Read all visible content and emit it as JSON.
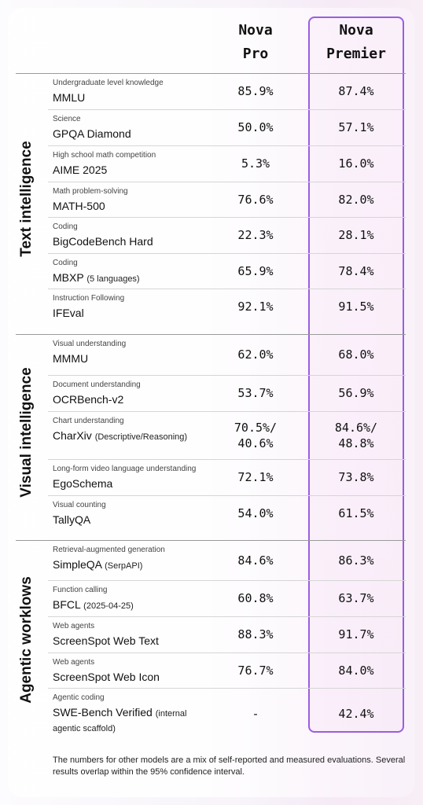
{
  "columns": {
    "pro": [
      "Nova",
      "Pro"
    ],
    "premier": [
      "Nova",
      "Premier"
    ]
  },
  "sections": [
    {
      "label": "Text intelligence",
      "rows": [
        {
          "cat": "Undergraduate level knowledge",
          "name": "MMLU",
          "sub": "",
          "pro": "85.9%",
          "prem": "87.4%"
        },
        {
          "cat": "Science",
          "name": "GPQA Diamond",
          "sub": "",
          "pro": "50.0%",
          "prem": "57.1%"
        },
        {
          "cat": "High school math competition",
          "name": "AIME 2025",
          "sub": "",
          "pro": "5.3%",
          "prem": "16.0%"
        },
        {
          "cat": "Math problem-solving",
          "name": "MATH-500",
          "sub": "",
          "pro": "76.6%",
          "prem": "82.0%"
        },
        {
          "cat": "Coding",
          "name": "BigCodeBench Hard",
          "sub": "",
          "pro": "22.3%",
          "prem": "28.1%"
        },
        {
          "cat": "Coding",
          "name": "MBXP",
          "sub": "(5 languages)",
          "pro": "65.9%",
          "prem": "78.4%"
        },
        {
          "cat": "Instruction Following",
          "name": "IFEval",
          "sub": "",
          "pro": "92.1%",
          "prem": "91.5%"
        }
      ]
    },
    {
      "label": "Visual intelligence",
      "rows": [
        {
          "cat": "Visual understanding",
          "name": "MMMU",
          "sub": "",
          "pro": "62.0%",
          "prem": "68.0%"
        },
        {
          "cat": "Document understanding",
          "name": "OCRBench-v2",
          "sub": "",
          "pro": "53.7%",
          "prem": "56.9%"
        },
        {
          "cat": "Chart understanding",
          "name": "CharXiv",
          "sub": "(Descriptive/Reasoning)",
          "pro": "70.5%/",
          "pro2": "40.6%",
          "prem": "84.6%/",
          "prem2": "48.8%"
        },
        {
          "cat": "Long-form video language understanding",
          "name": "EgoSchema",
          "sub": "",
          "pro": "72.1%",
          "prem": "73.8%"
        },
        {
          "cat": "Visual counting",
          "name": "TallyQA",
          "sub": "",
          "pro": "54.0%",
          "prem": "61.5%"
        }
      ]
    },
    {
      "label": "Agentic worklows",
      "rows": [
        {
          "cat": "Retrieval-augmented generation",
          "name": "SimpleQA",
          "sub": "(SerpAPI)",
          "pro": "84.6%",
          "prem": "86.3%"
        },
        {
          "cat": "Function calling",
          "name": "BFCL",
          "sub": "(2025-04-25)",
          "pro": "60.8%",
          "prem": "63.7%"
        },
        {
          "cat": "Web agents",
          "name": "ScreenSpot Web Text",
          "sub": "",
          "pro": "88.3%",
          "prem": "91.7%"
        },
        {
          "cat": "Web agents",
          "name": "ScreenSpot Web Icon",
          "sub": "",
          "pro": "76.7%",
          "prem": "84.0%"
        },
        {
          "cat": "Agentic coding",
          "name": "SWE-Bench Verified",
          "sub": "(internal",
          "sub2": "agentic scaffold)",
          "pro": "-",
          "prem": "42.4%"
        }
      ]
    }
  ],
  "footnote": "The numbers for other models are a mix of self-reported and measured evaluations. Several results overlap within the 95% confidence interval."
}
